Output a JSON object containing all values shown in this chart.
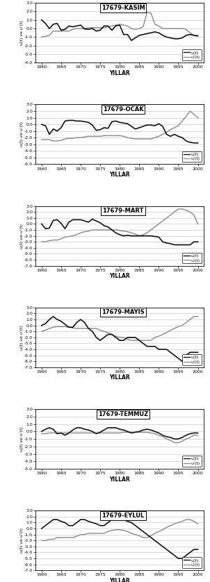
{
  "panels": [
    {
      "title": "17679-KASIM",
      "ylim": [
        -4.0,
        3.0
      ],
      "yticks": [
        -4.0,
        -3.0,
        -2.0,
        -1.0,
        0.0,
        1.0,
        2.0,
        3.0
      ],
      "u": [
        1.0,
        0.6,
        0.0,
        0.5,
        0.6,
        -0.2,
        -0.1,
        0.3,
        0.2,
        0.3,
        0.4,
        -0.05,
        -0.1,
        0.0,
        -0.3,
        -0.2,
        0.3,
        0.3,
        -0.2,
        0.3,
        0.4,
        -0.7,
        -0.7,
        -1.4,
        -1.1,
        -0.8,
        -0.7,
        -0.6,
        -0.5,
        -0.4,
        -0.5,
        -0.8,
        -1.0,
        -1.1,
        -1.2,
        -1.2,
        -1.1,
        -0.8,
        -0.7,
        -0.8,
        -0.85
      ],
      "u_prime": [
        -1.0,
        -0.9,
        -0.8,
        -0.3,
        -0.3,
        -0.3,
        -0.3,
        -0.3,
        -0.1,
        0.0,
        0.0,
        0.0,
        0.1,
        0.1,
        0.1,
        0.1,
        0.1,
        0.2,
        0.3,
        0.4,
        0.5,
        0.4,
        0.3,
        0.0,
        -0.1,
        0.0,
        0.2,
        1.9,
        1.8,
        0.5,
        0.3,
        0.0,
        0.0,
        0.0,
        0.0,
        0.0,
        0.0,
        -0.1,
        -0.5,
        -0.8,
        -0.9
      ]
    },
    {
      "title": "17679-OCAK",
      "ylim": [
        -6.0,
        3.0
      ],
      "yticks": [
        -6.0,
        -5.0,
        -4.0,
        -3.0,
        -2.0,
        -1.0,
        0.0,
        1.0,
        2.0,
        3.0
      ],
      "u": [
        0.0,
        -0.2,
        -1.5,
        -0.7,
        -1.0,
        -0.5,
        0.5,
        0.6,
        0.6,
        0.5,
        0.5,
        0.4,
        0.3,
        -0.1,
        -0.9,
        -0.8,
        -0.5,
        -0.6,
        0.4,
        0.5,
        0.3,
        0.2,
        0.1,
        -0.3,
        -0.7,
        -0.5,
        -0.3,
        -0.1,
        -0.1,
        -0.2,
        0.1,
        -0.3,
        -1.5,
        -1.8,
        -1.5,
        -1.8,
        -2.0,
        -2.5,
        -2.7,
        -2.8,
        -2.8
      ],
      "u_prime": [
        -2.3,
        -2.3,
        -2.3,
        -2.5,
        -2.5,
        -2.4,
        -2.2,
        -2.1,
        -2.1,
        -2.0,
        -2.0,
        -1.9,
        -1.8,
        -1.8,
        -1.8,
        -1.8,
        -1.7,
        -1.7,
        -1.7,
        -1.7,
        -1.7,
        -1.8,
        -2.0,
        -2.1,
        -2.2,
        -2.2,
        -2.2,
        -2.2,
        -2.2,
        -2.0,
        -1.8,
        -1.5,
        -1.2,
        -0.8,
        -0.5,
        -0.2,
        0.5,
        1.2,
        2.0,
        1.5,
        1.0
      ]
    },
    {
      "title": "17679-MART",
      "ylim": [
        -7.0,
        3.0
      ],
      "yticks": [
        -7.0,
        -6.0,
        -5.0,
        -4.0,
        -3.0,
        -2.0,
        -1.0,
        0.0,
        1.0,
        2.0,
        3.0
      ],
      "u": [
        0.0,
        -0.8,
        -0.7,
        0.6,
        0.7,
        0.1,
        -0.8,
        0.3,
        0.7,
        0.7,
        0.7,
        0.5,
        0.3,
        0.8,
        0.5,
        0.2,
        -0.3,
        -0.5,
        -1.0,
        -1.5,
        -1.8,
        -2.0,
        -1.9,
        -2.0,
        -2.0,
        -2.0,
        -2.0,
        -2.0,
        -2.0,
        -2.1,
        -2.2,
        -3.0,
        -3.2,
        -3.3,
        -3.5,
        -3.5,
        -3.5,
        -3.5,
        -3.5,
        -3.0,
        -3.0
      ],
      "u_prime": [
        -3.0,
        -3.0,
        -2.8,
        -2.7,
        -2.7,
        -2.5,
        -2.2,
        -2.1,
        -2.0,
        -1.8,
        -1.5,
        -1.3,
        -1.2,
        -1.0,
        -1.0,
        -1.0,
        -1.0,
        -1.0,
        -1.0,
        -1.0,
        -1.1,
        -1.2,
        -1.3,
        -1.5,
        -1.7,
        -2.0,
        -1.8,
        -1.5,
        -1.0,
        -0.5,
        0.0,
        0.5,
        1.0,
        1.5,
        2.0,
        2.5,
        2.5,
        2.3,
        2.0,
        1.5,
        0.0
      ]
    },
    {
      "title": "17679-MAYIS",
      "ylim": [
        -7.0,
        3.0
      ],
      "yticks": [
        -7.0,
        -6.0,
        -5.0,
        -4.0,
        -3.0,
        -2.0,
        -1.0,
        0.0,
        1.0,
        2.0,
        3.0
      ],
      "u": [
        0.0,
        0.3,
        1.0,
        1.5,
        1.0,
        0.7,
        0.2,
        -0.3,
        -0.3,
        0.5,
        1.0,
        0.5,
        -0.5,
        -1.0,
        -2.0,
        -2.5,
        -2.0,
        -1.5,
        -1.5,
        -2.0,
        -2.5,
        -2.5,
        -2.0,
        -2.0,
        -2.0,
        -2.5,
        -3.0,
        -3.5,
        -3.5,
        -3.5,
        -4.0,
        -4.0,
        -4.0,
        -4.5,
        -5.0,
        -5.5,
        -6.0,
        -5.0,
        -4.5,
        -4.5,
        -4.5
      ],
      "u_prime": [
        -1.0,
        -0.8,
        -0.5,
        -0.3,
        -0.2,
        -0.2,
        -0.2,
        -0.3,
        -0.4,
        -0.5,
        -0.5,
        -0.5,
        -0.5,
        -0.5,
        -0.5,
        -0.8,
        -1.0,
        -1.2,
        -1.5,
        -1.8,
        -2.0,
        -2.0,
        -2.3,
        -2.5,
        -2.5,
        -2.5,
        -2.5,
        -2.5,
        -2.5,
        -2.0,
        -1.8,
        -1.5,
        -1.2,
        -0.8,
        -0.5,
        -0.2,
        0.0,
        0.5,
        1.0,
        1.5,
        1.5
      ]
    },
    {
      "title": "17679-TEMMUZ",
      "ylim": [
        -5.0,
        3.0
      ],
      "yticks": [
        -5.0,
        -4.0,
        -3.0,
        -2.0,
        -1.0,
        0.0,
        1.0,
        2.0,
        3.0
      ],
      "u": [
        0.0,
        0.3,
        0.5,
        0.3,
        -0.3,
        -0.2,
        -0.5,
        -0.2,
        0.2,
        0.5,
        0.5,
        0.3,
        0.2,
        0.0,
        -0.3,
        -0.1,
        0.2,
        0.5,
        0.5,
        0.5,
        0.3,
        0.2,
        0.0,
        -0.2,
        -0.1,
        0.0,
        0.2,
        0.3,
        0.2,
        0.0,
        -0.2,
        -0.5,
        -0.7,
        -0.8,
        -1.0,
        -1.0,
        -0.8,
        -0.5,
        -0.3,
        -0.2,
        -0.2
      ],
      "u_prime": [
        -0.3,
        -0.3,
        -0.2,
        -0.2,
        -0.2,
        -0.2,
        -0.2,
        -0.2,
        -0.2,
        -0.2,
        -0.2,
        -0.2,
        -0.2,
        -0.2,
        -0.2,
        -0.2,
        -0.2,
        -0.2,
        -0.2,
        -0.2,
        -0.2,
        -0.1,
        -0.1,
        -0.1,
        -0.1,
        -0.1,
        -0.1,
        -0.1,
        -0.2,
        -0.3,
        -0.5,
        -0.7,
        -1.0,
        -1.2,
        -1.5,
        -1.5,
        -1.3,
        -1.0,
        -0.8,
        -0.5,
        -0.5
      ]
    },
    {
      "title": "17679-EYLUL",
      "ylim": [
        -7.0,
        3.0
      ],
      "yticks": [
        -7.0,
        -6.0,
        -5.0,
        -4.0,
        -3.0,
        -2.0,
        -1.0,
        0.0,
        1.0,
        2.0,
        3.0
      ],
      "u": [
        0.0,
        0.5,
        1.0,
        1.5,
        1.5,
        1.2,
        1.0,
        0.5,
        0.5,
        1.0,
        1.5,
        1.5,
        1.2,
        1.0,
        0.8,
        0.5,
        0.5,
        1.0,
        1.5,
        2.0,
        1.8,
        1.5,
        1.2,
        1.0,
        0.5,
        0.0,
        -0.5,
        -1.0,
        -1.5,
        -2.0,
        -2.5,
        -3.0,
        -3.5,
        -4.0,
        -4.5,
        -5.0,
        -5.0,
        -4.5,
        -4.0,
        -3.5,
        -3.5
      ],
      "u_prime": [
        -2.0,
        -2.0,
        -1.8,
        -1.8,
        -1.5,
        -1.5,
        -1.5,
        -1.5,
        -1.5,
        -1.3,
        -1.0,
        -1.0,
        -0.8,
        -0.8,
        -0.8,
        -0.8,
        -0.8,
        -0.5,
        -0.3,
        -0.2,
        -0.2,
        -0.3,
        -0.5,
        -0.8,
        -1.0,
        -1.2,
        -1.5,
        -1.5,
        -1.2,
        -0.8,
        -0.5,
        -0.2,
        0.2,
        0.5,
        0.8,
        1.0,
        1.2,
        1.5,
        1.5,
        1.2,
        0.8
      ]
    }
  ],
  "years": [
    1960,
    1961,
    1962,
    1963,
    1964,
    1965,
    1966,
    1967,
    1968,
    1969,
    1970,
    1971,
    1972,
    1973,
    1974,
    1975,
    1976,
    1977,
    1978,
    1979,
    1980,
    1981,
    1982,
    1983,
    1984,
    1985,
    1986,
    1987,
    1988,
    1989,
    1990,
    1991,
    1992,
    1993,
    1994,
    1995,
    1996,
    1997,
    1998,
    1999,
    2000
  ],
  "xlabel": "YILLAR",
  "ylabel": "u(t) ve u'(t)",
  "u_color": "#111111",
  "u_prime_color": "#888888",
  "u_linewidth": 1.2,
  "u_prime_linewidth": 1.0,
  "legend_u": "u(t)",
  "legend_u_prime": "u'(t)",
  "xticks": [
    1960,
    1965,
    1970,
    1975,
    1980,
    1985,
    1990,
    1995,
    2000
  ],
  "background_color": "#ffffff"
}
